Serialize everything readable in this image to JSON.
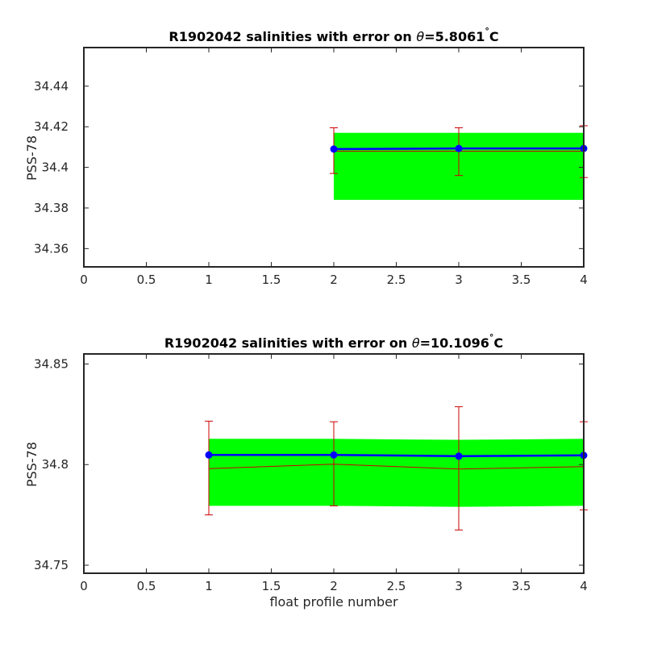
{
  "chart_data": [
    {
      "type": "line",
      "title_prefix": "R1902042 salinities with error on ",
      "title_theta": "θ",
      "title_value": "=5.8061",
      "title_degree": "°",
      "title_unit": "C",
      "xlabel": "",
      "ylabel": "PSS-78",
      "xlim": [
        0,
        4
      ],
      "ylim": [
        34.351,
        34.459
      ],
      "x_ticks": [
        0,
        0.5,
        1,
        1.5,
        2,
        2.5,
        3,
        3.5,
        4
      ],
      "x_tick_labels": [
        "0",
        "0.5",
        "1",
        "1.5",
        "2",
        "2.5",
        "3",
        "3.5",
        "4"
      ],
      "y_ticks": [
        34.36,
        34.38,
        34.4,
        34.42,
        34.44
      ],
      "y_tick_labels": [
        "34.36",
        "34.38",
        "34.4",
        "34.42",
        "34.44"
      ],
      "band": {
        "x": [
          2,
          3,
          4
        ],
        "lower": [
          34.384,
          34.384,
          34.384
        ],
        "upper": [
          34.417,
          34.417,
          34.417
        ],
        "color": "#00ff00"
      },
      "errorbars": {
        "x": [
          2,
          3,
          4
        ],
        "center": [
          34.408,
          34.408,
          34.408
        ],
        "lower": [
          34.397,
          34.396,
          34.395
        ],
        "upper": [
          34.4195,
          34.4195,
          34.4205
        ],
        "color": "#ff0000"
      },
      "series": [
        {
          "x": [
            2,
            3,
            4
          ],
          "values": [
            34.409,
            34.4093,
            34.4093
          ],
          "color": "#0000ff",
          "marker": "circle"
        }
      ],
      "colors": {
        "band": "#00ff00",
        "error": "#cc0000",
        "line": "#0000ff"
      }
    },
    {
      "type": "line",
      "title_prefix": "R1902042 salinities with error on ",
      "title_theta": "θ",
      "title_value": "=10.1096",
      "title_degree": "°",
      "title_unit": "C",
      "xlabel": "float profile number",
      "ylabel": "PSS-78",
      "xlim": [
        0,
        4
      ],
      "ylim": [
        34.746,
        34.855
      ],
      "x_ticks": [
        0,
        0.5,
        1,
        1.5,
        2,
        2.5,
        3,
        3.5,
        4
      ],
      "x_tick_labels": [
        "0",
        "0.5",
        "1",
        "1.5",
        "2",
        "2.5",
        "3",
        "3.5",
        "4"
      ],
      "y_ticks": [
        34.75,
        34.8,
        34.85
      ],
      "y_tick_labels": [
        "34.75",
        "34.8",
        "34.85"
      ],
      "band": {
        "x": [
          1,
          2,
          3,
          4
        ],
        "lower": [
          34.7795,
          34.7795,
          34.779,
          34.7795
        ],
        "upper": [
          34.8128,
          34.8128,
          34.8123,
          34.8128
        ],
        "color": "#00ff00"
      },
      "errorbars": {
        "x": [
          1,
          2,
          3,
          4
        ],
        "center": [
          34.798,
          34.8002,
          34.7978,
          34.799
        ],
        "lower": [
          34.775,
          34.7795,
          34.7675,
          34.7775
        ],
        "upper": [
          34.8216,
          34.8213,
          34.8288,
          34.8213
        ],
        "color": "#ff0000"
      },
      "series": [
        {
          "x": [
            1,
            2,
            3,
            4
          ],
          "values": [
            34.8048,
            34.8048,
            34.8042,
            34.8046
          ],
          "color": "#0000ff",
          "marker": "circle"
        }
      ],
      "colors": {
        "band": "#00ff00",
        "error": "#cc0000",
        "line": "#0000ff"
      }
    }
  ]
}
